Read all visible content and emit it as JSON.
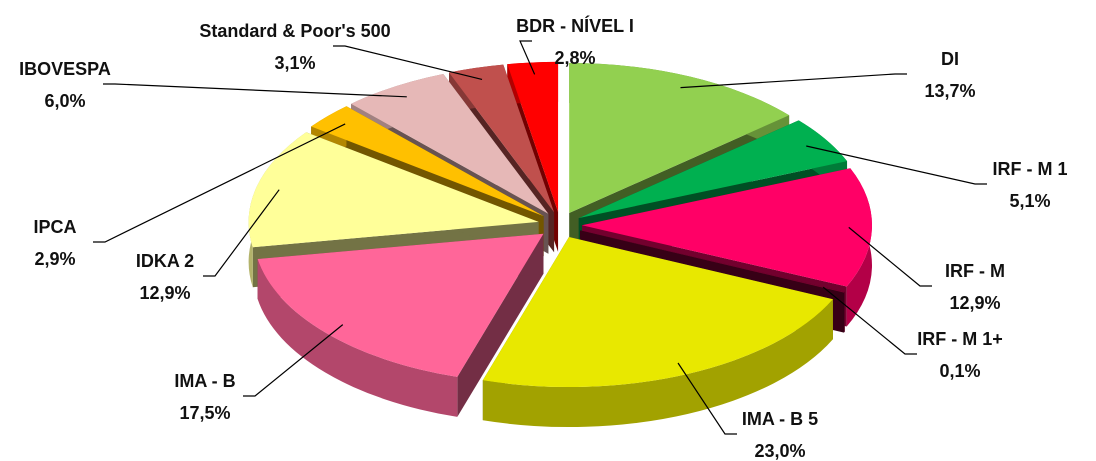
{
  "chart_data": {
    "type": "pie3d",
    "categories": [
      "DI",
      "IRF - M 1",
      "IRF - M",
      "IRF - M 1+",
      "IMA - B 5",
      "IMA - B",
      "IDKA 2",
      "IPCA",
      "IBOVESPA",
      "Standard & Poor's 500",
      "BDR - NÍVEL I"
    ],
    "values": [
      13.7,
      5.1,
      12.9,
      0.1,
      23.0,
      17.5,
      12.9,
      2.9,
      6.0,
      3.1,
      2.8
    ],
    "value_labels": [
      "13,7%",
      "5,1%",
      "12,9%",
      "0,1%",
      "23,0%",
      "17,5%",
      "12,9%",
      "2,9%",
      "6,0%",
      "3,1%",
      "2,8%"
    ],
    "colors": [
      "#92d050",
      "#00b050",
      "#ff0066",
      "#7a0030",
      "#e8e800",
      "#ff6699",
      "#ffff99",
      "#ffc000",
      "#e6b8b7",
      "#c0504d",
      "#ff0000"
    ]
  }
}
